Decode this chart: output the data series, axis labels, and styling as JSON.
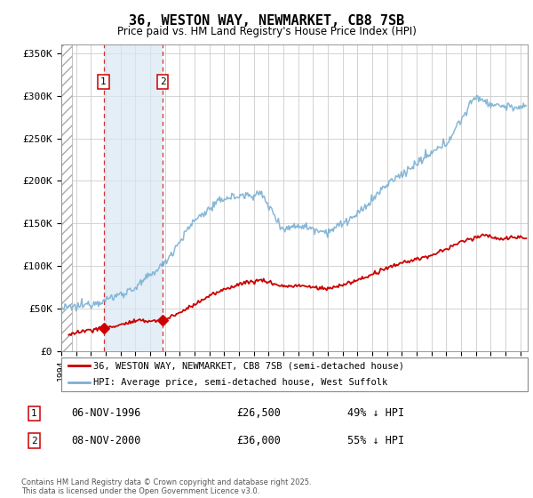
{
  "title": "36, WESTON WAY, NEWMARKET, CB8 7SB",
  "subtitle": "Price paid vs. HM Land Registry's House Price Index (HPI)",
  "legend_line1": "36, WESTON WAY, NEWMARKET, CB8 7SB (semi-detached house)",
  "legend_line2": "HPI: Average price, semi-detached house, West Suffolk",
  "footnote": "Contains HM Land Registry data © Crown copyright and database right 2025.\nThis data is licensed under the Open Government Licence v3.0.",
  "transactions": [
    {
      "label": "1",
      "date": "06-NOV-1996",
      "price": 26500,
      "year": 1996.85,
      "pct": "49% ↓ HPI"
    },
    {
      "label": "2",
      "date": "08-NOV-2000",
      "price": 36000,
      "year": 2000.85,
      "pct": "55% ↓ HPI"
    }
  ],
  "ylim": [
    0,
    360000
  ],
  "xlim": [
    1994.0,
    2025.5
  ],
  "hatch_region_end": 1994.7,
  "red_color": "#cc0000",
  "blue_color": "#7ab0d4",
  "background_color": "#ffffff",
  "plot_bg_color": "#ffffff"
}
